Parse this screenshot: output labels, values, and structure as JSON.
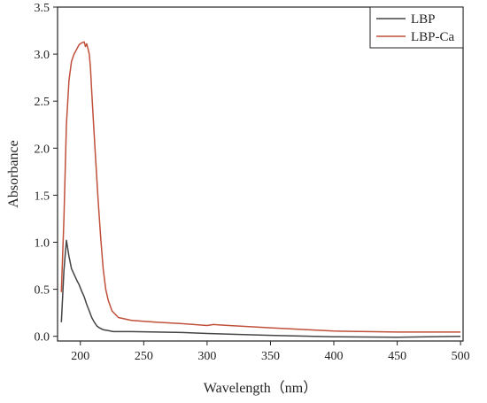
{
  "chart_data": {
    "type": "line",
    "xlabel": "Wavelength（nm）",
    "ylabel": "Absorbance",
    "xlim": [
      182,
      502
    ],
    "ylim": [
      -0.05,
      3.5
    ],
    "x_ticks": [
      200,
      250,
      300,
      350,
      400,
      450,
      500
    ],
    "x_tick_labels": [
      "200",
      "250",
      "300",
      "350",
      "400",
      "450",
      "500"
    ],
    "y_ticks": [
      0,
      0.5,
      1,
      1.5,
      2,
      2.5,
      3,
      3.5
    ],
    "y_tick_labels": [
      "0.0",
      "0.5",
      "1.0",
      "1.5",
      "2.0",
      "2.5",
      "3.0",
      "3.5"
    ],
    "grid": false,
    "legend_position": "top-right",
    "series": [
      {
        "name": "LBP",
        "color": "#444444",
        "x": [
          185,
          187,
          189,
          191,
          193,
          195,
          197,
          199,
          201,
          203,
          205,
          207,
          209,
          211,
          213,
          215,
          218,
          222,
          226,
          230,
          240,
          260,
          280,
          300,
          350,
          400,
          450,
          500
        ],
        "y": [
          0.15,
          0.7,
          1.02,
          0.85,
          0.72,
          0.66,
          0.6,
          0.55,
          0.48,
          0.42,
          0.34,
          0.27,
          0.2,
          0.15,
          0.11,
          0.09,
          0.07,
          0.06,
          0.05,
          0.05,
          0.05,
          0.045,
          0.04,
          0.03,
          0.01,
          -0.005,
          -0.01,
          0.0
        ]
      },
      {
        "name": "LBP-Ca",
        "color": "#c0503a",
        "x": [
          185,
          187,
          189,
          191,
          193,
          195,
          197,
          199,
          201,
          203,
          204,
          205,
          206,
          207,
          208,
          209,
          210,
          212,
          214,
          216,
          218,
          220,
          222,
          225,
          230,
          240,
          250,
          260,
          280,
          300,
          305,
          310,
          350,
          400,
          450,
          500
        ],
        "y": [
          0.47,
          1.25,
          2.25,
          2.72,
          2.92,
          3.0,
          3.05,
          3.1,
          3.12,
          3.13,
          3.08,
          3.11,
          3.06,
          3.0,
          2.85,
          2.6,
          2.35,
          1.9,
          1.45,
          1.05,
          0.72,
          0.5,
          0.38,
          0.27,
          0.2,
          0.17,
          0.16,
          0.15,
          0.135,
          0.115,
          0.125,
          0.12,
          0.09,
          0.055,
          0.045,
          0.045
        ]
      }
    ]
  }
}
